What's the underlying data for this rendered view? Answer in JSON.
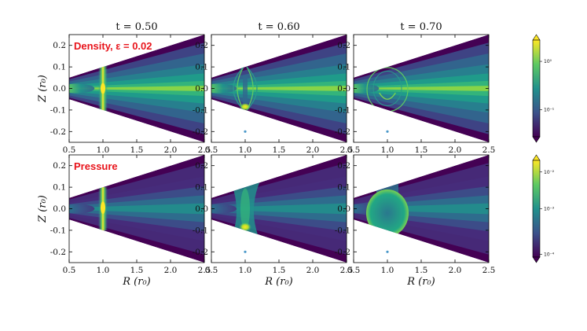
{
  "chart_data": {
    "type": "heatmap",
    "colormap": "viridis",
    "columns": [
      {
        "title": "t = 0.50"
      },
      {
        "title": "t = 0.60"
      },
      {
        "title": "t = 0.70"
      }
    ],
    "xlabel": "R (r₀)",
    "ylabel": "Z (r₀)",
    "xlim": [
      0.5,
      2.5
    ],
    "ylim": [
      -0.25,
      0.25
    ],
    "xticks": [
      "0.5",
      "1.0",
      "1.5",
      "2.0",
      "2.5"
    ],
    "yticks": [
      "0.2",
      "0.1",
      "0.0",
      "-0.1",
      "-0.2"
    ],
    "rows": [
      {
        "label": "Density, ε = 0.02",
        "colorbar": {
          "scale": "log",
          "ticks": [
            "10⁰",
            "10⁻¹"
          ]
        },
        "panels": [
          {
            "t": 0.5,
            "feature": "narrow bright vertical band at R = 1.0"
          },
          {
            "t": 0.6,
            "feature": "arc-shaped fronts around R = 1.0, bright spot near Z = -0.09"
          },
          {
            "t": 0.7,
            "feature": "expanding shell around R = 1.0, faint point at Z = -0.2"
          }
        ]
      },
      {
        "label": "Pressure",
        "colorbar": {
          "scale": "log",
          "ticks": [
            "10⁻²",
            "10⁻³",
            "10⁻⁴"
          ]
        },
        "panels": [
          {
            "t": 0.5,
            "feature": "bright column at R = 1.0"
          },
          {
            "t": 0.6,
            "feature": "hourglass-shaped high pressure region, peak near Z = -0.09"
          },
          {
            "t": 0.7,
            "feature": "bulb-shaped high pressure region around R = 1.0, faint point at Z = -0.2"
          }
        ]
      }
    ],
    "annotation_color": "#e8141b"
  }
}
